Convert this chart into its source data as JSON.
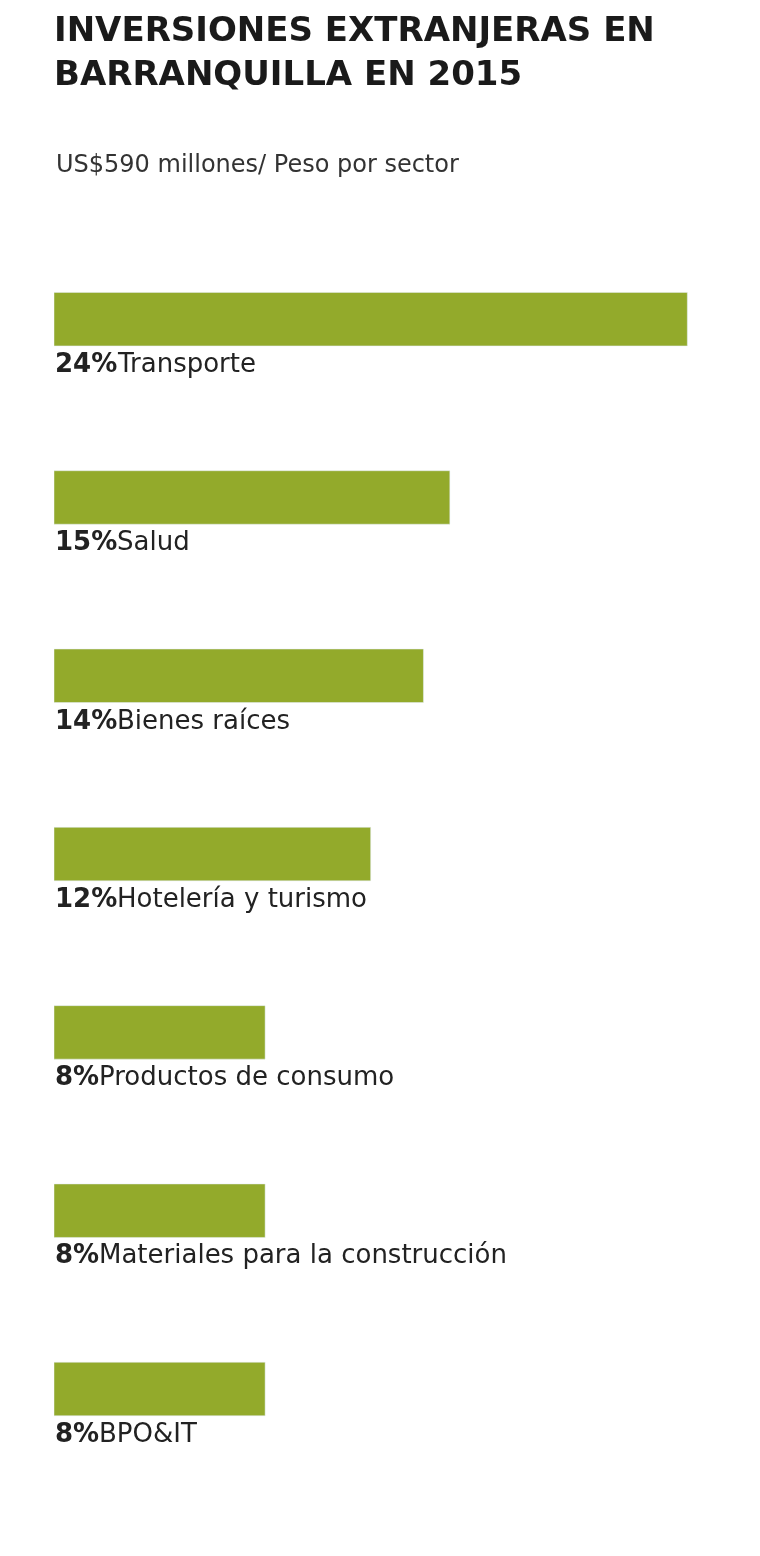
{
  "chart_data": {
    "type": "bar",
    "orientation": "horizontal",
    "title": "INVERSIONES EXTRANJERAS EN BARRANQUILLA EN 2015",
    "subtitle": "US$590 millones/ Peso por sector",
    "categories": [
      "Transporte",
      "Salud",
      "Bienes raíces",
      "Hotelería y turismo",
      "Productos de consumo",
      "Materiales para la construcción",
      "BPO&IT"
    ],
    "values": [
      24,
      15,
      14,
      12,
      8,
      8,
      8
    ],
    "value_labels": [
      "24%",
      "15%",
      "14%",
      "12%",
      "8%",
      "8%",
      "8%"
    ],
    "color": "#93aa2b"
  }
}
